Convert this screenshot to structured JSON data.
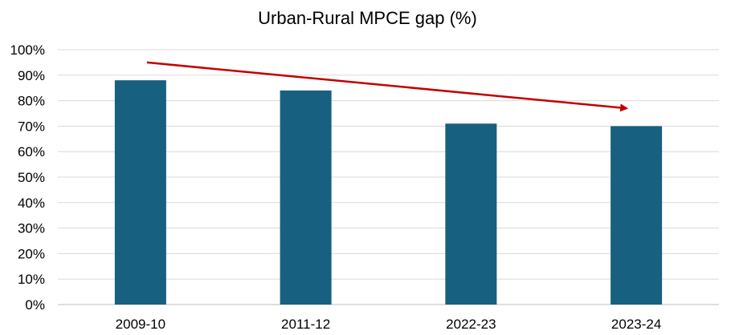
{
  "chart_data": {
    "type": "bar",
    "title": "Urban-Rural MPCE gap (%)",
    "categories": [
      "2009-10",
      "2011-12",
      "2022-23",
      "2023-24"
    ],
    "values": [
      88,
      84,
      71,
      70
    ],
    "value_unit": "%",
    "xlabel": "",
    "ylabel": "",
    "ylim": [
      0,
      100
    ],
    "ytick_step": 10,
    "grid": true,
    "legend": "none",
    "bar_color": "#17607f",
    "grid_color": "#d9d9d9",
    "annotation": {
      "type": "trend-arrow",
      "color": "#c00000",
      "from": {
        "x": "2009-10",
        "y": 95
      },
      "to": {
        "x": "2023-24",
        "y": 77
      }
    }
  }
}
